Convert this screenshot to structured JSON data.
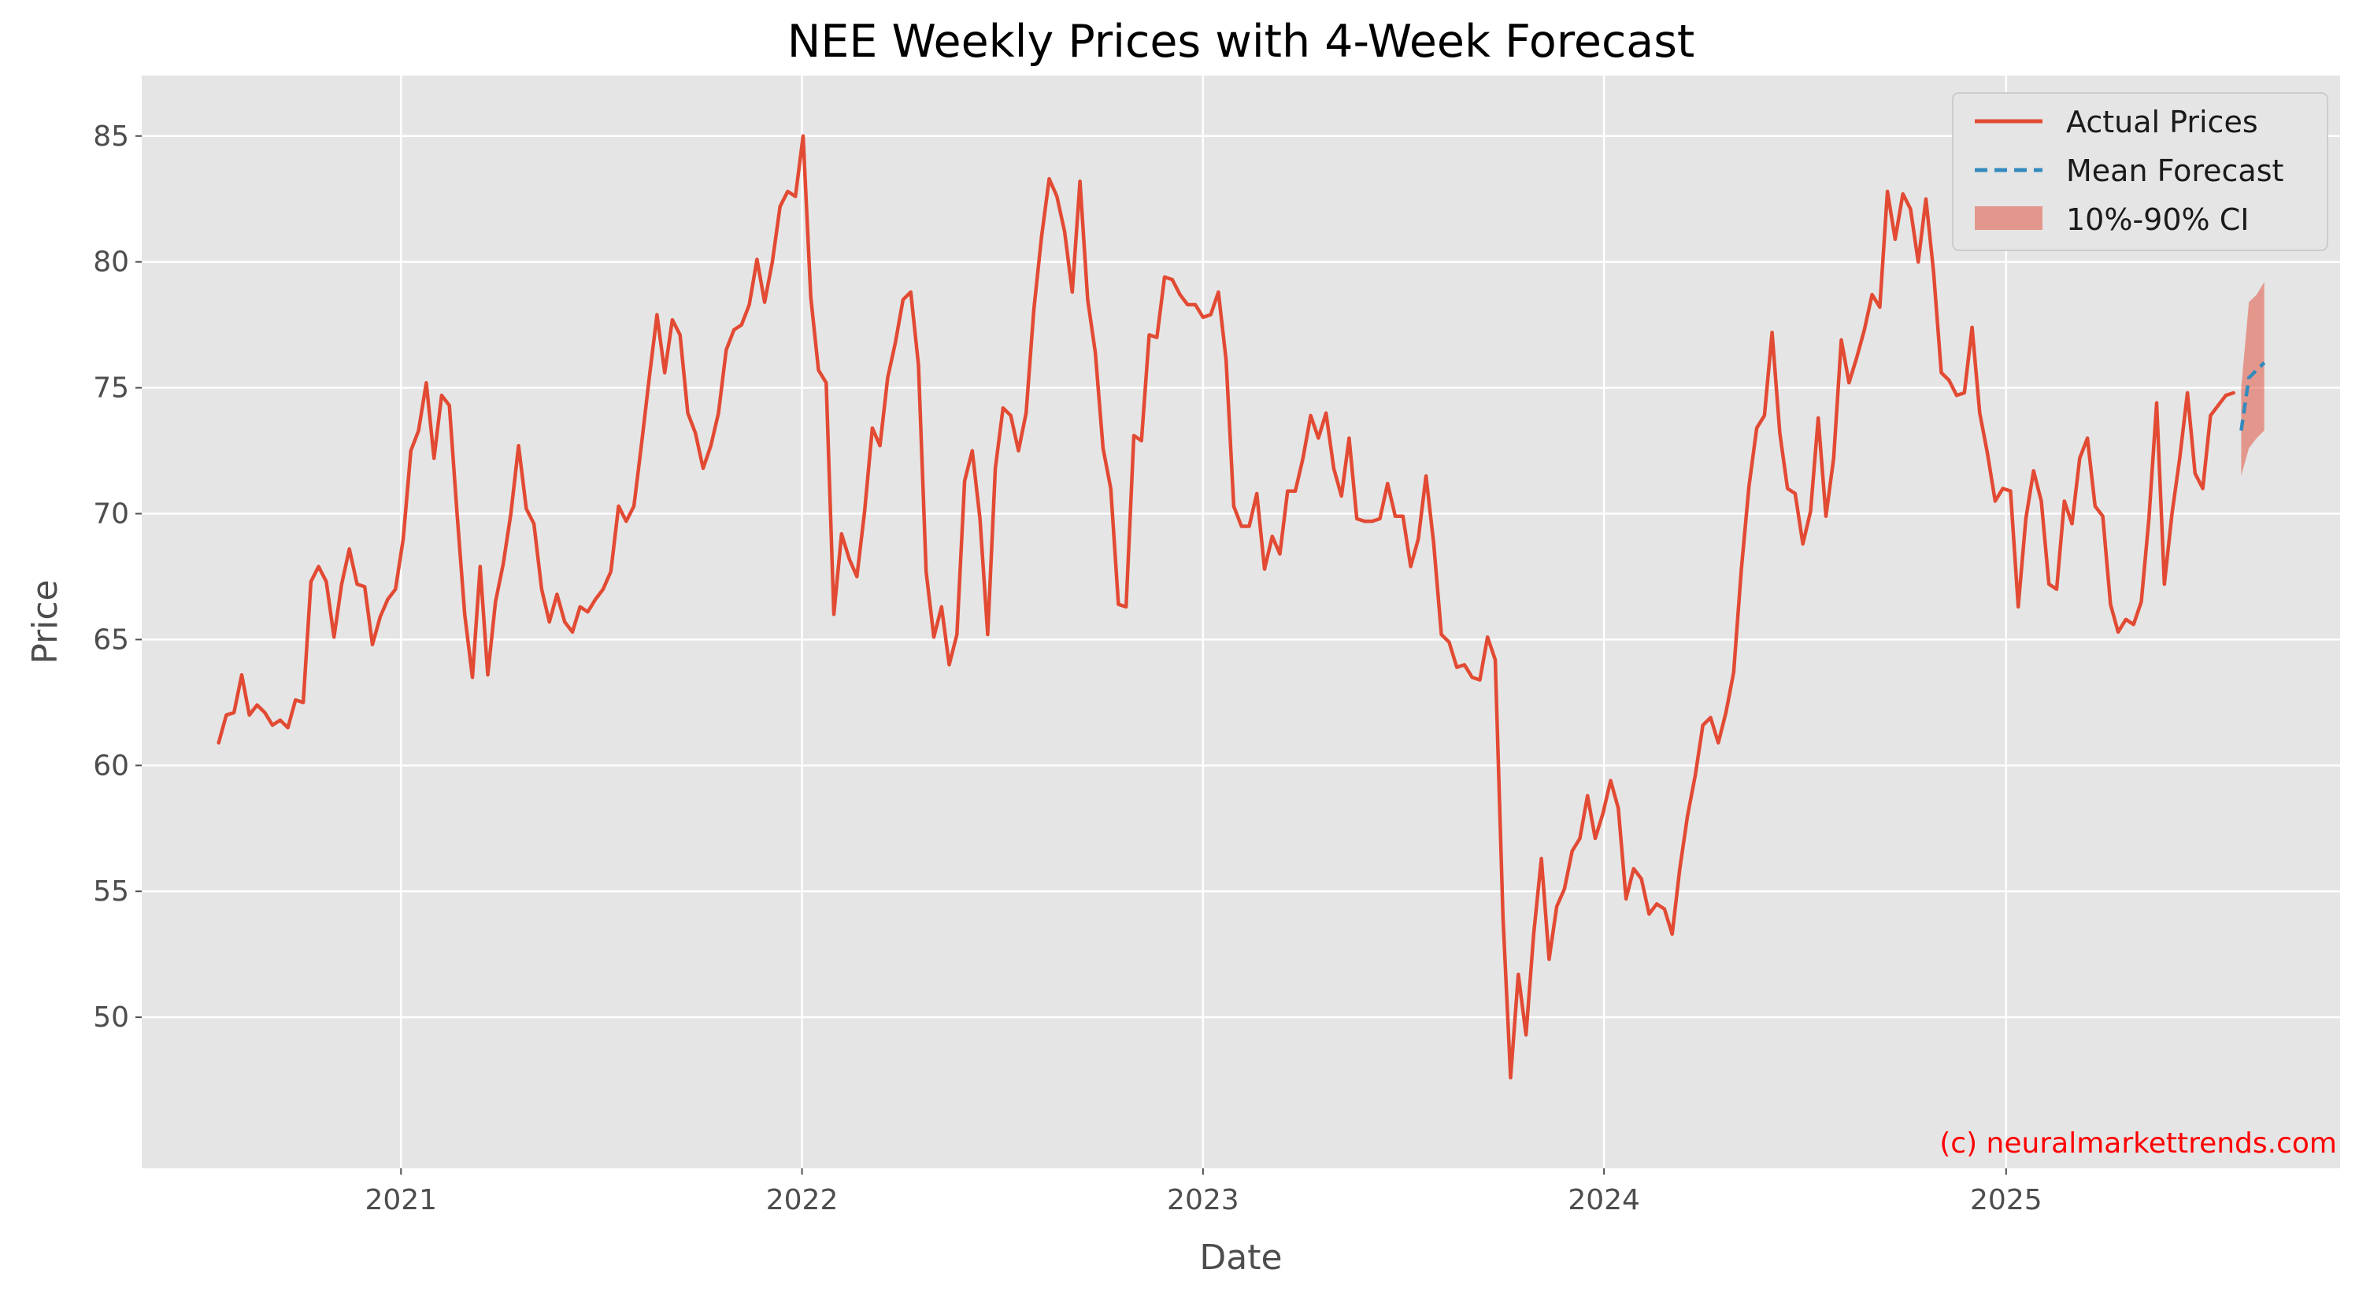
{
  "chart_data": {
    "type": "line",
    "title": "NEE Weekly Prices with 4-Week Forecast",
    "xlabel": "Date",
    "ylabel": "Price",
    "xlim": [
      "2020-05-10",
      "2025-11-01"
    ],
    "ylim": [
      44,
      87.4
    ],
    "x_ticks": [
      "2021",
      "2022",
      "2023",
      "2024",
      "2025"
    ],
    "y_ticks": [
      50,
      55,
      60,
      65,
      70,
      75,
      80,
      85
    ],
    "grid": true,
    "legend_position": "top-right",
    "watermark": "(c) neuralmarkettrends.com",
    "colors": {
      "actual": "#E24A33",
      "forecast": "#348ABD",
      "ci": "#E24A33",
      "watermark": "#ff0000",
      "plot_bg": "#E5E5E5",
      "grid": "#ffffff"
    },
    "series": [
      {
        "name": "Actual Prices",
        "style": "solid",
        "points": [
          [
            "2020-07-19",
            60.9
          ],
          [
            "2020-07-26",
            62.0
          ],
          [
            "2020-08-02",
            62.1
          ],
          [
            "2020-08-09",
            63.6
          ],
          [
            "2020-08-16",
            62.0
          ],
          [
            "2020-08-23",
            62.4
          ],
          [
            "2020-08-30",
            62.1
          ],
          [
            "2020-09-06",
            61.6
          ],
          [
            "2020-09-13",
            61.8
          ],
          [
            "2020-09-20",
            61.5
          ],
          [
            "2020-09-27",
            62.6
          ],
          [
            "2020-10-04",
            62.5
          ],
          [
            "2020-10-11",
            67.3
          ],
          [
            "2020-10-18",
            67.9
          ],
          [
            "2020-10-25",
            67.3
          ],
          [
            "2020-11-01",
            65.1
          ],
          [
            "2020-11-08",
            67.2
          ],
          [
            "2020-11-15",
            68.6
          ],
          [
            "2020-11-22",
            67.2
          ],
          [
            "2020-11-29",
            67.1
          ],
          [
            "2020-12-06",
            64.8
          ],
          [
            "2020-12-13",
            65.9
          ],
          [
            "2020-12-20",
            66.6
          ],
          [
            "2020-12-27",
            67.0
          ],
          [
            "2021-01-03",
            69.0
          ],
          [
            "2021-01-10",
            72.5
          ],
          [
            "2021-01-17",
            73.3
          ],
          [
            "2021-01-24",
            75.2
          ],
          [
            "2021-01-31",
            72.2
          ],
          [
            "2021-02-07",
            74.7
          ],
          [
            "2021-02-14",
            74.3
          ],
          [
            "2021-02-21",
            70.0
          ],
          [
            "2021-02-28",
            66.0
          ],
          [
            "2021-03-07",
            63.5
          ],
          [
            "2021-03-14",
            67.9
          ],
          [
            "2021-03-21",
            63.6
          ],
          [
            "2021-03-28",
            66.5
          ],
          [
            "2021-04-04",
            68.0
          ],
          [
            "2021-04-11",
            70.0
          ],
          [
            "2021-04-18",
            72.7
          ],
          [
            "2021-04-25",
            70.2
          ],
          [
            "2021-05-02",
            69.6
          ],
          [
            "2021-05-09",
            67.0
          ],
          [
            "2021-05-16",
            65.7
          ],
          [
            "2021-05-23",
            66.8
          ],
          [
            "2021-05-30",
            65.7
          ],
          [
            "2021-06-06",
            65.3
          ],
          [
            "2021-06-13",
            66.3
          ],
          [
            "2021-06-20",
            66.1
          ],
          [
            "2021-06-27",
            66.6
          ],
          [
            "2021-07-04",
            67.0
          ],
          [
            "2021-07-11",
            67.7
          ],
          [
            "2021-07-18",
            70.3
          ],
          [
            "2021-07-25",
            69.7
          ],
          [
            "2021-08-01",
            70.3
          ],
          [
            "2021-08-08",
            72.8
          ],
          [
            "2021-08-15",
            75.4
          ],
          [
            "2021-08-22",
            77.9
          ],
          [
            "2021-08-29",
            75.6
          ],
          [
            "2021-09-05",
            77.7
          ],
          [
            "2021-09-12",
            77.1
          ],
          [
            "2021-09-19",
            74.0
          ],
          [
            "2021-09-26",
            73.2
          ],
          [
            "2021-10-03",
            71.8
          ],
          [
            "2021-10-10",
            72.7
          ],
          [
            "2021-10-17",
            74.0
          ],
          [
            "2021-10-24",
            76.5
          ],
          [
            "2021-10-31",
            77.3
          ],
          [
            "2021-11-07",
            77.5
          ],
          [
            "2021-11-14",
            78.3
          ],
          [
            "2021-11-21",
            80.1
          ],
          [
            "2021-11-28",
            78.4
          ],
          [
            "2021-12-05",
            80.0
          ],
          [
            "2021-12-12",
            82.2
          ],
          [
            "2021-12-19",
            82.8
          ],
          [
            "2021-12-26",
            82.6
          ],
          [
            "2022-01-02",
            85.0
          ],
          [
            "2022-01-09",
            78.6
          ],
          [
            "2022-01-16",
            75.7
          ],
          [
            "2022-01-23",
            75.2
          ],
          [
            "2022-01-30",
            66.0
          ],
          [
            "2022-02-06",
            69.2
          ],
          [
            "2022-02-13",
            68.2
          ],
          [
            "2022-02-20",
            67.5
          ],
          [
            "2022-02-27",
            70.1
          ],
          [
            "2022-03-06",
            73.4
          ],
          [
            "2022-03-13",
            72.7
          ],
          [
            "2022-03-20",
            75.4
          ],
          [
            "2022-03-27",
            76.8
          ],
          [
            "2022-04-03",
            78.5
          ],
          [
            "2022-04-10",
            78.8
          ],
          [
            "2022-04-17",
            75.9
          ],
          [
            "2022-04-24",
            67.7
          ],
          [
            "2022-05-01",
            65.1
          ],
          [
            "2022-05-08",
            66.3
          ],
          [
            "2022-05-15",
            64.0
          ],
          [
            "2022-05-22",
            65.2
          ],
          [
            "2022-05-29",
            71.3
          ],
          [
            "2022-06-05",
            72.5
          ],
          [
            "2022-06-12",
            69.8
          ],
          [
            "2022-06-19",
            65.2
          ],
          [
            "2022-06-26",
            71.8
          ],
          [
            "2022-07-03",
            74.2
          ],
          [
            "2022-07-10",
            73.9
          ],
          [
            "2022-07-17",
            72.5
          ],
          [
            "2022-07-24",
            74.0
          ],
          [
            "2022-07-31",
            78.1
          ],
          [
            "2022-08-07",
            81.0
          ],
          [
            "2022-08-14",
            83.3
          ],
          [
            "2022-08-21",
            82.6
          ],
          [
            "2022-08-28",
            81.2
          ],
          [
            "2022-09-04",
            78.8
          ],
          [
            "2022-09-11",
            83.2
          ],
          [
            "2022-09-18",
            78.5
          ],
          [
            "2022-09-25",
            76.4
          ],
          [
            "2022-10-02",
            72.6
          ],
          [
            "2022-10-09",
            71.0
          ],
          [
            "2022-10-16",
            66.4
          ],
          [
            "2022-10-23",
            66.3
          ],
          [
            "2022-10-30",
            73.1
          ],
          [
            "2022-11-06",
            72.9
          ],
          [
            "2022-11-13",
            77.1
          ],
          [
            "2022-11-20",
            77.0
          ],
          [
            "2022-11-27",
            79.4
          ],
          [
            "2022-12-04",
            79.3
          ],
          [
            "2022-12-11",
            78.7
          ],
          [
            "2022-12-18",
            78.3
          ],
          [
            "2022-12-25",
            78.3
          ],
          [
            "2023-01-01",
            77.8
          ],
          [
            "2023-01-08",
            77.9
          ],
          [
            "2023-01-15",
            78.8
          ],
          [
            "2023-01-22",
            76.1
          ],
          [
            "2023-01-29",
            70.3
          ],
          [
            "2023-02-05",
            69.5
          ],
          [
            "2023-02-12",
            69.5
          ],
          [
            "2023-02-19",
            70.8
          ],
          [
            "2023-02-26",
            67.8
          ],
          [
            "2023-03-05",
            69.1
          ],
          [
            "2023-03-12",
            68.4
          ],
          [
            "2023-03-19",
            70.9
          ],
          [
            "2023-03-26",
            70.9
          ],
          [
            "2023-04-02",
            72.2
          ],
          [
            "2023-04-09",
            73.9
          ],
          [
            "2023-04-16",
            73.0
          ],
          [
            "2023-04-23",
            74.0
          ],
          [
            "2023-04-30",
            71.8
          ],
          [
            "2023-05-07",
            70.7
          ],
          [
            "2023-05-14",
            73.0
          ],
          [
            "2023-05-21",
            69.8
          ],
          [
            "2023-05-28",
            69.7
          ],
          [
            "2023-06-04",
            69.7
          ],
          [
            "2023-06-11",
            69.8
          ],
          [
            "2023-06-18",
            71.2
          ],
          [
            "2023-06-25",
            69.9
          ],
          [
            "2023-07-02",
            69.9
          ],
          [
            "2023-07-09",
            67.9
          ],
          [
            "2023-07-16",
            69.0
          ],
          [
            "2023-07-23",
            71.5
          ],
          [
            "2023-07-30",
            68.8
          ],
          [
            "2023-08-06",
            65.2
          ],
          [
            "2023-08-13",
            64.9
          ],
          [
            "2023-08-20",
            63.9
          ],
          [
            "2023-08-27",
            64.0
          ],
          [
            "2023-09-03",
            63.5
          ],
          [
            "2023-09-10",
            63.4
          ],
          [
            "2023-09-17",
            65.1
          ],
          [
            "2023-09-24",
            64.2
          ],
          [
            "2023-10-01",
            54.0
          ],
          [
            "2023-10-08",
            47.6
          ],
          [
            "2023-10-15",
            51.7
          ],
          [
            "2023-10-22",
            49.3
          ],
          [
            "2023-10-29",
            53.3
          ],
          [
            "2023-11-05",
            56.3
          ],
          [
            "2023-11-12",
            52.3
          ],
          [
            "2023-11-19",
            54.4
          ],
          [
            "2023-11-26",
            55.1
          ],
          [
            "2023-12-03",
            56.6
          ],
          [
            "2023-12-10",
            57.1
          ],
          [
            "2023-12-17",
            58.8
          ],
          [
            "2023-12-24",
            57.1
          ],
          [
            "2023-12-31",
            58.1
          ],
          [
            "2024-01-07",
            59.4
          ],
          [
            "2024-01-14",
            58.3
          ],
          [
            "2024-01-21",
            54.7
          ],
          [
            "2024-01-28",
            55.9
          ],
          [
            "2024-02-04",
            55.5
          ],
          [
            "2024-02-11",
            54.1
          ],
          [
            "2024-02-18",
            54.5
          ],
          [
            "2024-02-25",
            54.3
          ],
          [
            "2024-03-03",
            53.3
          ],
          [
            "2024-03-10",
            55.9
          ],
          [
            "2024-03-17",
            58.0
          ],
          [
            "2024-03-24",
            59.6
          ],
          [
            "2024-03-31",
            61.6
          ],
          [
            "2024-04-07",
            61.9
          ],
          [
            "2024-04-14",
            60.9
          ],
          [
            "2024-04-21",
            62.1
          ],
          [
            "2024-04-28",
            63.7
          ],
          [
            "2024-05-05",
            67.8
          ],
          [
            "2024-05-12",
            71.1
          ],
          [
            "2024-05-19",
            73.4
          ],
          [
            "2024-05-26",
            73.9
          ],
          [
            "2024-06-02",
            77.2
          ],
          [
            "2024-06-09",
            73.2
          ],
          [
            "2024-06-16",
            71.0
          ],
          [
            "2024-06-23",
            70.8
          ],
          [
            "2024-06-30",
            68.8
          ],
          [
            "2024-07-07",
            70.1
          ],
          [
            "2024-07-14",
            73.8
          ],
          [
            "2024-07-21",
            69.9
          ],
          [
            "2024-07-28",
            72.2
          ],
          [
            "2024-08-04",
            76.9
          ],
          [
            "2024-08-11",
            75.2
          ],
          [
            "2024-08-18",
            76.2
          ],
          [
            "2024-08-25",
            77.3
          ],
          [
            "2024-09-01",
            78.7
          ],
          [
            "2024-09-08",
            78.2
          ],
          [
            "2024-09-15",
            82.8
          ],
          [
            "2024-09-22",
            80.9
          ],
          [
            "2024-09-29",
            82.7
          ],
          [
            "2024-10-06",
            82.1
          ],
          [
            "2024-10-13",
            80.0
          ],
          [
            "2024-10-20",
            82.5
          ],
          [
            "2024-10-27",
            79.6
          ],
          [
            "2024-11-03",
            75.6
          ],
          [
            "2024-11-10",
            75.3
          ],
          [
            "2024-11-17",
            74.7
          ],
          [
            "2024-11-24",
            74.8
          ],
          [
            "2024-12-01",
            77.4
          ],
          [
            "2024-12-08",
            74.0
          ],
          [
            "2024-12-15",
            72.4
          ],
          [
            "2024-12-22",
            70.5
          ],
          [
            "2024-12-29",
            71.0
          ],
          [
            "2025-01-05",
            70.9
          ],
          [
            "2025-01-12",
            66.3
          ],
          [
            "2025-01-19",
            69.8
          ],
          [
            "2025-01-26",
            71.7
          ],
          [
            "2025-02-02",
            70.5
          ],
          [
            "2025-02-09",
            67.2
          ],
          [
            "2025-02-16",
            67.0
          ],
          [
            "2025-02-23",
            70.5
          ],
          [
            "2025-03-02",
            69.6
          ],
          [
            "2025-03-09",
            72.2
          ],
          [
            "2025-03-16",
            73.0
          ],
          [
            "2025-03-23",
            70.3
          ],
          [
            "2025-03-30",
            69.9
          ],
          [
            "2025-04-06",
            66.4
          ],
          [
            "2025-04-13",
            65.3
          ],
          [
            "2025-04-20",
            65.8
          ],
          [
            "2025-04-27",
            65.6
          ],
          [
            "2025-05-04",
            66.5
          ],
          [
            "2025-05-11",
            69.8
          ],
          [
            "2025-05-18",
            74.4
          ],
          [
            "2025-05-25",
            67.2
          ],
          [
            "2025-06-01",
            70.0
          ],
          [
            "2025-06-08",
            72.2
          ],
          [
            "2025-06-15",
            74.8
          ],
          [
            "2025-06-22",
            71.6
          ],
          [
            "2025-06-29",
            71.0
          ],
          [
            "2025-07-06",
            73.9
          ],
          [
            "2025-07-13",
            74.3
          ],
          [
            "2025-07-20",
            74.7
          ],
          [
            "2025-07-27",
            74.8
          ]
        ]
      },
      {
        "name": "Mean Forecast",
        "style": "dashed",
        "points": [
          [
            "2025-08-03",
            73.3
          ],
          [
            "2025-08-10",
            75.4
          ],
          [
            "2025-08-17",
            75.7
          ],
          [
            "2025-08-24",
            76.0
          ]
        ]
      }
    ],
    "band": {
      "name": "10%-90% CI",
      "points": [
        [
          "2025-08-03",
          71.5,
          75.0
        ],
        [
          "2025-08-10",
          72.6,
          78.4
        ],
        [
          "2025-08-17",
          73.0,
          78.7
        ],
        [
          "2025-08-24",
          73.3,
          79.2
        ]
      ]
    }
  }
}
